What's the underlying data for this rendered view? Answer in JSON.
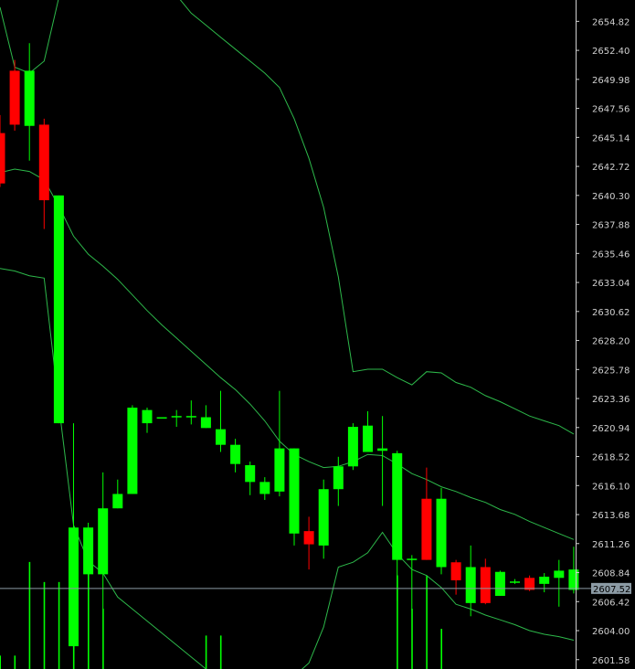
{
  "chart_data": {
    "type": "candlestick",
    "title": "",
    "ylim": [
      2600.8,
      2656.6
    ],
    "y_axis_ticks": [
      "2654.82",
      "2652.40",
      "2649.98",
      "2647.56",
      "2645.14",
      "2642.72",
      "2640.30",
      "2637.88",
      "2635.46",
      "2633.04",
      "2630.62",
      "2628.20",
      "2625.78",
      "2623.36",
      "2620.94",
      "2618.52",
      "2616.10",
      "2613.68",
      "2611.26",
      "2608.84",
      "2606.42",
      "2604.00",
      "2601.58"
    ],
    "current_price": "2607.52",
    "grid": false,
    "colors": {
      "background": "#000000",
      "bull_candle": "#00ff00",
      "bear_candle": "#ff0000",
      "bands": "#2db84a",
      "volume": "#00ff00",
      "axis_text": "#d0d0d0",
      "current_price_line": "#8c9ba5",
      "current_price_label_bg": "#8c9ba5"
    },
    "candles": [
      {
        "o": 2645.5,
        "h": 2647.0,
        "l": 2641.0,
        "c": 2641.3
      },
      {
        "o": 2650.7,
        "h": 2651.6,
        "l": 2645.7,
        "c": 2646.2
      },
      {
        "o": 2646.1,
        "h": 2653.0,
        "l": 2643.2,
        "c": 2650.7
      },
      {
        "o": 2646.2,
        "h": 2646.7,
        "l": 2637.5,
        "c": 2639.9
      },
      {
        "o": 2621.3,
        "h": 2640.3,
        "l": 2621.3,
        "c": 2640.3
      },
      {
        "o": 2602.7,
        "h": 2621.3,
        "l": 2602.5,
        "c": 2612.6
      },
      {
        "o": 2608.7,
        "h": 2613.0,
        "l": 2606.5,
        "c": 2612.6
      },
      {
        "o": 2608.7,
        "h": 2617.2,
        "l": 2605.8,
        "c": 2614.2
      },
      {
        "o": 2614.2,
        "h": 2616.6,
        "l": 2614.2,
        "c": 2615.4
      },
      {
        "o": 2615.4,
        "h": 2622.8,
        "l": 2615.4,
        "c": 2622.6
      },
      {
        "o": 2621.3,
        "h": 2622.6,
        "l": 2620.5,
        "c": 2622.4
      },
      {
        "o": 2621.8,
        "h": 2621.8,
        "l": 2621.8,
        "c": 2621.8
      },
      {
        "o": 2621.8,
        "h": 2622.4,
        "l": 2621.0,
        "c": 2621.9
      },
      {
        "o": 2621.8,
        "h": 2623.2,
        "l": 2621.2,
        "c": 2621.9
      },
      {
        "o": 2620.9,
        "h": 2622.8,
        "l": 2620.9,
        "c": 2621.8
      },
      {
        "o": 2619.5,
        "h": 2624.0,
        "l": 2618.9,
        "c": 2620.8
      },
      {
        "o": 2617.9,
        "h": 2620.0,
        "l": 2617.2,
        "c": 2619.5
      },
      {
        "o": 2616.4,
        "h": 2618.1,
        "l": 2615.3,
        "c": 2617.8
      },
      {
        "o": 2615.4,
        "h": 2616.8,
        "l": 2614.9,
        "c": 2616.4
      },
      {
        "o": 2615.6,
        "h": 2624.0,
        "l": 2615.2,
        "c": 2619.2
      },
      {
        "o": 2612.1,
        "h": 2619.2,
        "l": 2611.1,
        "c": 2619.2
      },
      {
        "o": 2612.3,
        "h": 2613.5,
        "l": 2609.1,
        "c": 2611.2
      },
      {
        "o": 2611.1,
        "h": 2616.6,
        "l": 2610.0,
        "c": 2615.8
      },
      {
        "o": 2615.8,
        "h": 2618.5,
        "l": 2614.4,
        "c": 2617.7
      },
      {
        "o": 2617.7,
        "h": 2621.3,
        "l": 2617.4,
        "c": 2621.0
      },
      {
        "o": 2618.9,
        "h": 2622.3,
        "l": 2618.9,
        "c": 2621.1
      },
      {
        "o": 2619.0,
        "h": 2621.9,
        "l": 2614.4,
        "c": 2619.2
      },
      {
        "o": 2609.9,
        "h": 2619.0,
        "l": 2606.5,
        "c": 2618.8
      },
      {
        "o": 2609.9,
        "h": 2610.3,
        "l": 2605.7,
        "c": 2610.0
      },
      {
        "o": 2615.0,
        "h": 2617.6,
        "l": 2609.9,
        "c": 2609.9
      },
      {
        "o": 2609.3,
        "h": 2615.9,
        "l": 2608.7,
        "c": 2615.0
      },
      {
        "o": 2609.7,
        "h": 2609.9,
        "l": 2607.0,
        "c": 2608.2
      },
      {
        "o": 2606.3,
        "h": 2611.1,
        "l": 2605.2,
        "c": 2609.3
      },
      {
        "o": 2609.3,
        "h": 2610.0,
        "l": 2606.2,
        "c": 2606.3
      },
      {
        "o": 2606.9,
        "h": 2609.0,
        "l": 2606.9,
        "c": 2608.9
      },
      {
        "o": 2608.1,
        "h": 2608.3,
        "l": 2607.9,
        "c": 2608.1
      },
      {
        "o": 2608.4,
        "h": 2608.6,
        "l": 2607.3,
        "c": 2607.4
      },
      {
        "o": 2607.9,
        "h": 2608.8,
        "l": 2607.2,
        "c": 2608.5
      },
      {
        "o": 2608.4,
        "h": 2609.9,
        "l": 2606.0,
        "c": 2609.0
      },
      {
        "o": 2607.4,
        "h": 2611.0,
        "l": 2607.1,
        "c": 2609.1
      }
    ],
    "bands": {
      "upper": [
        2656.0,
        2651.0,
        2650.5,
        2651.5,
        2656.8,
        2658,
        2658,
        2658,
        2658,
        2658,
        2658,
        2658,
        2657,
        2655.5,
        2654.5,
        2653.5,
        2652.5,
        2651.5,
        2650.5,
        2649.3,
        2646.7,
        2643.4,
        2639.3,
        2633.5,
        2625.6,
        2625.8,
        2625.8,
        2625.1,
        2624.5,
        2625.6,
        2625.5,
        2624.7,
        2624.3,
        2623.6,
        2623.1,
        2622.5,
        2621.9,
        2621.5,
        2621.1,
        2620.4
      ],
      "middle": [
        2642.2,
        2642.5,
        2642.3,
        2641.6,
        2639.4,
        2636.9,
        2635.4,
        2634.4,
        2633.3,
        2632.0,
        2630.7,
        2629.5,
        2628.4,
        2627.3,
        2626.2,
        2625.1,
        2624.1,
        2622.9,
        2621.5,
        2619.8,
        2618.7,
        2618.1,
        2617.6,
        2617.7,
        2618.1,
        2618.7,
        2618.6,
        2617.9,
        2617.1,
        2616.6,
        2616.0,
        2615.6,
        2615.1,
        2614.7,
        2614.1,
        2613.7,
        2613.1,
        2612.6,
        2612.1,
        2611.6
      ],
      "lower": [
        2634.2,
        2634.0,
        2633.6,
        2633.4,
        2622.8,
        2612.8,
        2609.8,
        2608.8,
        2606.8,
        2605.8,
        2604.8,
        2603.8,
        2602.8,
        2601.8,
        2600.8,
        2600.0,
        2599.8,
        2599.8,
        2599.8,
        2599.8,
        2600.2,
        2601.3,
        2604.3,
        2609.3,
        2609.7,
        2610.5,
        2612.2,
        2610.4,
        2609.1,
        2608.6,
        2607.6,
        2606.2,
        2605.8,
        2605.3,
        2604.9,
        2604.5,
        2604.0,
        2603.7,
        2603.5,
        2603.2
      ]
    },
    "volume": [
      0.02,
      0.02,
      0.16,
      0.13,
      0.13,
      0.16,
      0.16,
      0.09,
      0,
      0,
      0,
      0,
      0,
      0,
      0.05,
      0.05,
      0,
      0,
      0,
      0,
      0,
      0,
      0,
      0,
      0,
      0,
      0,
      0.14,
      0.09,
      0.14,
      0.06,
      0,
      0,
      0,
      0,
      0,
      0,
      0,
      0,
      0
    ]
  }
}
